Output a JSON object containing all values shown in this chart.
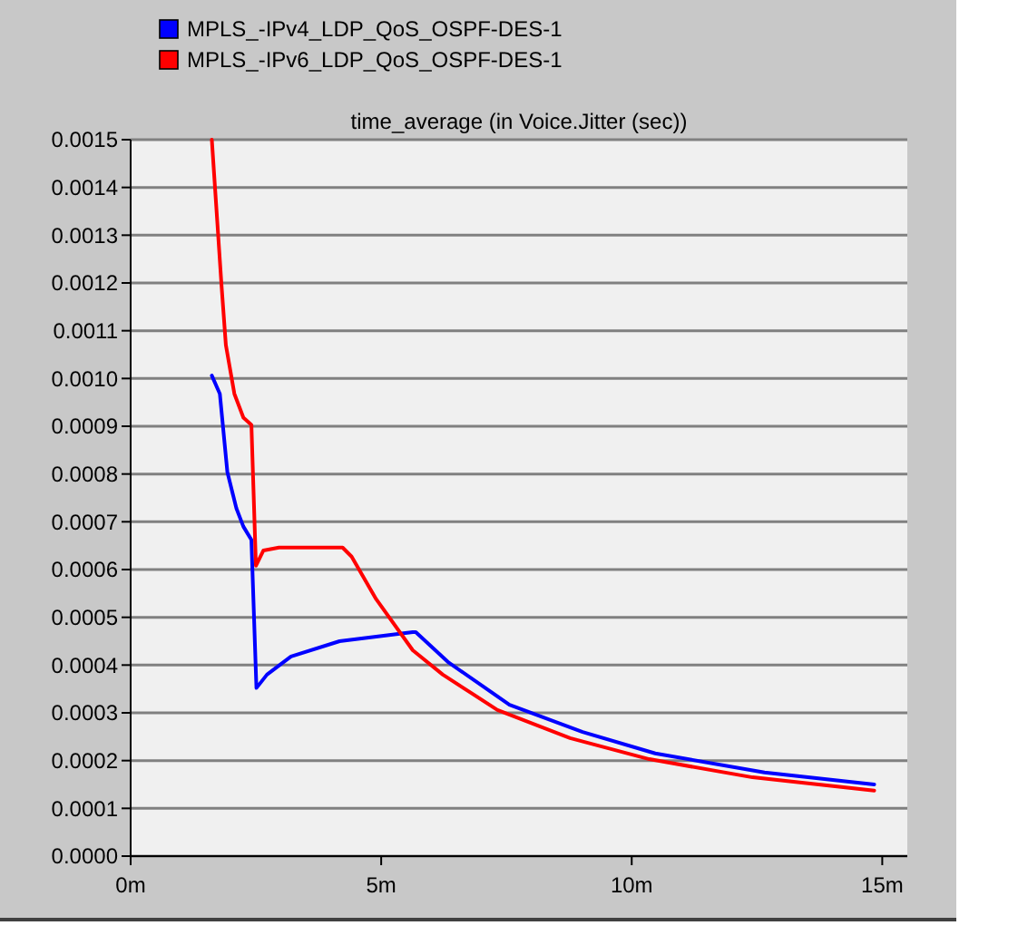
{
  "chart_data": {
    "type": "line",
    "title": "time_average (in Voice.Jitter (sec))",
    "xlim": [
      0,
      15.5
    ],
    "xticks": [
      {
        "value": 0,
        "label": "0m"
      },
      {
        "value": 5,
        "label": "5m"
      },
      {
        "value": 10,
        "label": "10m"
      },
      {
        "value": 15,
        "label": "15m"
      }
    ],
    "ylim": [
      0,
      0.0015
    ],
    "yticks": [
      {
        "value": 0,
        "label": "0.0000"
      },
      {
        "value": 0.0001,
        "label": "0.0001"
      },
      {
        "value": 0.0002,
        "label": "0.0002"
      },
      {
        "value": 0.0003,
        "label": "0.0003"
      },
      {
        "value": 0.0004,
        "label": "0.0004"
      },
      {
        "value": 0.0005,
        "label": "0.0005"
      },
      {
        "value": 0.0006,
        "label": "0.0006"
      },
      {
        "value": 0.0007,
        "label": "0.0007"
      },
      {
        "value": 0.0008,
        "label": "0.0008"
      },
      {
        "value": 0.0009,
        "label": "0.0009"
      },
      {
        "value": 0.001,
        "label": "0.0010"
      },
      {
        "value": 0.0011,
        "label": "0.0011"
      },
      {
        "value": 0.0012,
        "label": "0.0012"
      },
      {
        "value": 0.0013,
        "label": "0.0013"
      },
      {
        "value": 0.0014,
        "label": "0.0014"
      },
      {
        "value": 0.0015,
        "label": "0.0015"
      }
    ],
    "grid": "y",
    "legend": "top left",
    "marker": "none",
    "line_style": "solid",
    "series": [
      {
        "name": "MPLS_-IPv4_LDP_QoS_OSPF-DES-1",
        "color": "#0000ff",
        "x": [
          1.62,
          1.78,
          1.93,
          2.11,
          2.25,
          2.41,
          2.51,
          2.72,
          3.2,
          4.17,
          5.63,
          5.69,
          6.35,
          7.56,
          9.02,
          10.47,
          12.65,
          14.84
        ],
        "values": [
          0.001006,
          0.000968,
          0.000804,
          0.000728,
          0.00069,
          0.000662,
          0.000352,
          0.00038,
          0.000418,
          0.00045,
          0.000469,
          0.000469,
          0.000405,
          0.000317,
          0.00026,
          0.000215,
          0.000175,
          0.00015
        ]
      },
      {
        "name": "MPLS_-IPv6_LDP_QoS_OSPF-DES-1",
        "color": "#ff0000",
        "x": [
          1.62,
          1.81,
          1.9,
          2.07,
          2.25,
          2.41,
          2.5,
          2.65,
          2.96,
          4.23,
          4.41,
          4.9,
          5.63,
          6.23,
          7.32,
          8.77,
          10.35,
          12.41,
          14.84
        ],
        "values": [
          0.0015,
          0.0012,
          0.00107,
          0.000968,
          0.000918,
          0.000903,
          0.000608,
          0.00064,
          0.000646,
          0.000646,
          0.000627,
          0.000538,
          0.000431,
          0.00038,
          0.000306,
          0.000247,
          0.000203,
          0.000165,
          0.000137
        ]
      }
    ]
  }
}
